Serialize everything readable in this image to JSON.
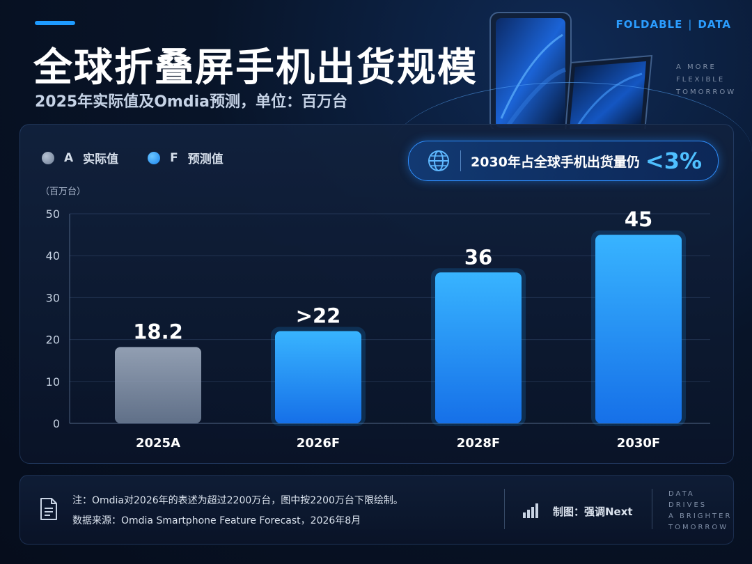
{
  "header": {
    "title": "全球折叠屏手机出货规模",
    "subtitle": "2025年实际值及Omdia预测，单位：百万台",
    "brand_left": "FOLDABLE",
    "brand_separator": "|",
    "brand_right": "DATA",
    "tagline": [
      "A MORE",
      "FLEXIBLE",
      "TOMORROW"
    ]
  },
  "legend": {
    "items": [
      {
        "code": "A",
        "label": "实际值",
        "color": "#8e9bb0"
      },
      {
        "code": "F",
        "label": "预测值",
        "color": "#1e9bff"
      }
    ]
  },
  "callout": {
    "icon": "globe-icon",
    "text": "2030年占全球手机出货量仍",
    "highlight": "<3%"
  },
  "chart_data": {
    "type": "bar",
    "unit_label": "（百万台）",
    "categories": [
      "2025A",
      "2026F",
      "2028F",
      "2030F"
    ],
    "values": [
      18.2,
      22,
      36,
      45
    ],
    "data_labels": [
      "18.2",
      ">22",
      "36",
      "45"
    ],
    "kinds": [
      "actual",
      "forecast",
      "forecast",
      "forecast"
    ],
    "yticks": [
      0,
      10,
      20,
      30,
      40,
      50
    ],
    "ylim": [
      0,
      50
    ],
    "grid": true,
    "colors": {
      "actual": "#9aa8bc",
      "forecast": "#1e9bff"
    }
  },
  "footer": {
    "note": "注：Omdia对2026年的表述为超过2200万台，图中按2200万台下限绘制。",
    "source": "数据来源：Omdia Smartphone Feature Forecast，2026年8月",
    "credit": "制图：强调Next",
    "tagline": [
      "DATA",
      "DRIVES",
      "A BRIGHTER",
      "TOMORROW"
    ]
  }
}
